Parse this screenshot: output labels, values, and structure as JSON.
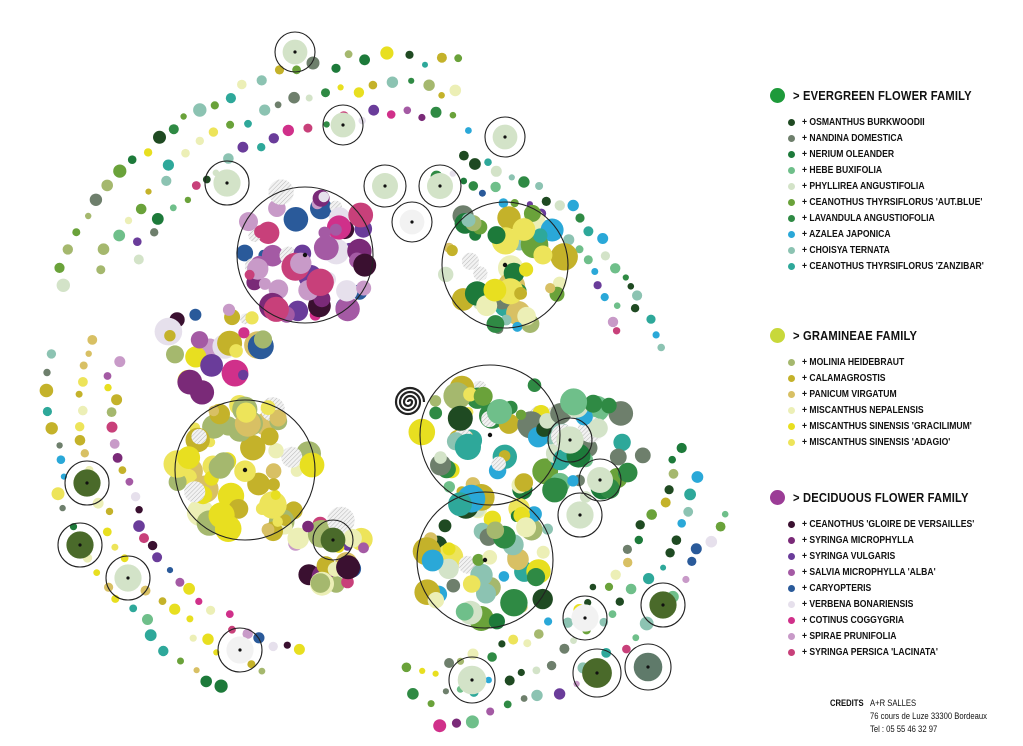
{
  "legend": {
    "families": [
      {
        "title": "> EVERGREEN FLOWER FAMILY",
        "color": "#1e9a3a",
        "items": [
          {
            "label": "+ OSMANTHUS BURKWOODII",
            "color": "#1f4a22"
          },
          {
            "label": "+ NANDINA DOMESTICA",
            "color": "#6e7f6c"
          },
          {
            "label": "+ NERIUM OLEANDER",
            "color": "#1d7a3a"
          },
          {
            "label": "+ HEBE BUXIFOLIA",
            "color": "#6fbf8a"
          },
          {
            "label": "+ PHYLLIREA ANGUSTIFOLIA",
            "color": "#d3e3c8"
          },
          {
            "label": "+ CEANOTHUS THYRSIFLORUS 'AUT.BLUE'",
            "color": "#6aa23a"
          },
          {
            "label": "+ LAVANDULA ANGUSTIOFOLIA",
            "color": "#2f8a44"
          },
          {
            "label": "+ AZALEA JAPONICA",
            "color": "#2aa8d8"
          },
          {
            "label": "+ CHOISYA TERNATA",
            "color": "#8cc3b2"
          },
          {
            "label": "+ CEANOTHUS THYRSIFLORUS 'ZANZIBAR'",
            "color": "#2ea89a"
          }
        ]
      },
      {
        "title": "> GRAMINEAE FAMILY",
        "color": "#c8d83a",
        "items": [
          {
            "label": "+ MOLINIA HEIDEBRAUT",
            "color": "#a5b86e"
          },
          {
            "label": "+ CALAMAGROSTIS",
            "color": "#c4b22a"
          },
          {
            "label": "+ PANICUM VIRGATUM",
            "color": "#d8c064"
          },
          {
            "label": "+ MISCANTHUS NEPALENSIS",
            "color": "#ecefb6"
          },
          {
            "label": "+ MISCANTHUS SINENSIS 'GRACILIMUM'",
            "color": "#e8df20"
          },
          {
            "label": "+ MISCANTHUS SINENSIS 'ADAGIO'",
            "color": "#ede45a"
          }
        ]
      },
      {
        "title": "> DECIDUOUS FLOWER FAMILY",
        "color": "#9b3c96",
        "items": [
          {
            "label": "+ CEANOTHUS 'GLOIRE DE VERSAILLES'",
            "color": "#3a1030"
          },
          {
            "label": "+ SYRINGA MICROPHYLLA",
            "color": "#7a2a78"
          },
          {
            "label": "+ SYRINGA VULGARIS",
            "color": "#6a3c9a"
          },
          {
            "label": "+ SALVIA MICROPHYLLA 'ALBA'",
            "color": "#a45aa4"
          },
          {
            "label": "+ CARYOPTERIS",
            "color": "#2a5a9a"
          },
          {
            "label": " + VERBENA BONARIENSIS",
            "color": "#e6e0ec"
          },
          {
            "label": "+ COTINUS COGGYGRIA",
            "color": "#d0308a"
          },
          {
            "label": "+ SPIRAE PRUNIFOLIA",
            "color": "#c89ac8"
          },
          {
            "label": "+ SYRINGA PERSICA 'LACINATA'",
            "color": "#c8407a"
          }
        ]
      }
    ]
  },
  "credits": {
    "label": "CREDITS",
    "lines": [
      "A+R SALLES",
      "76 cours de Luze 33300 Bordeaux",
      "Tel : 05 55 46 32 97"
    ]
  }
}
